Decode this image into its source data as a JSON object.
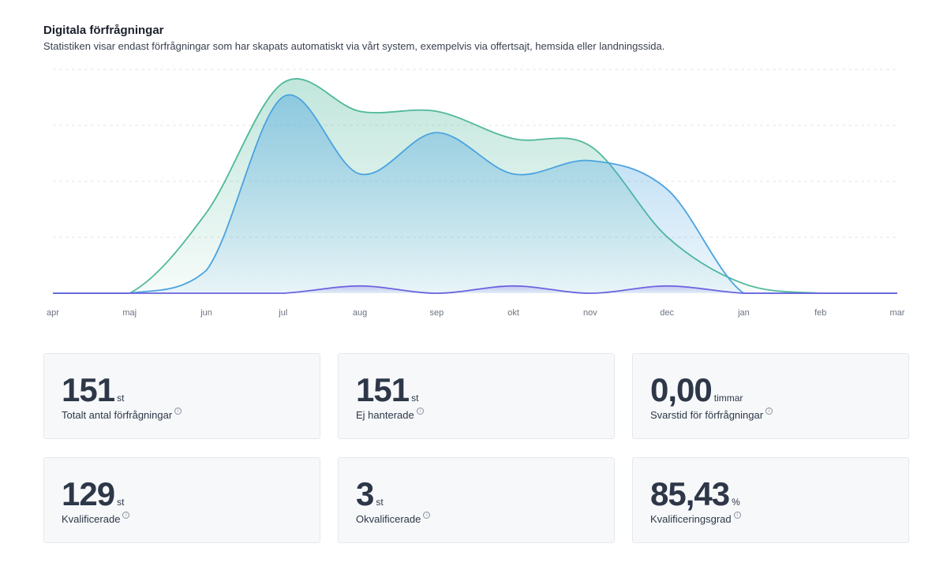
{
  "header": {
    "title": "Digitala förfrågningar",
    "subtitle": "Statistiken visar endast förfrågningar som har skapats automatiskt via vårt system, exempelvis via offertsajt, hemsida eller landningssida."
  },
  "chart_data": {
    "type": "area",
    "categories": [
      "apr",
      "maj",
      "jun",
      "jul",
      "aug",
      "sep",
      "okt",
      "nov",
      "dec",
      "jan",
      "feb",
      "mar"
    ],
    "ylim": [
      0,
      4
    ],
    "grid": true,
    "series": [
      {
        "color": "#4fb89a",
        "values": [
          0,
          0,
          1.44,
          3.76,
          3.25,
          3.25,
          2.76,
          2.63,
          1.01,
          0.17,
          0,
          0
        ]
      },
      {
        "color": "#4aa3e0",
        "values": [
          0,
          0,
          0.41,
          3.51,
          2.13,
          2.87,
          2.13,
          2.37,
          1.86,
          0,
          0,
          0
        ]
      },
      {
        "color": "#6b63e0",
        "values": [
          0,
          0,
          0,
          0,
          0.13,
          0,
          0.13,
          0,
          0.13,
          0,
          0,
          0
        ]
      }
    ]
  },
  "cards": [
    {
      "value": "151",
      "unit": "st",
      "label": "Totalt antal förfrågningar"
    },
    {
      "value": "151",
      "unit": "st",
      "label": "Ej hanterade"
    },
    {
      "value": "0,00",
      "unit": "timmar",
      "label": "Svarstid för förfrågningar"
    },
    {
      "value": "129",
      "unit": "st",
      "label": "Kvalificerade"
    },
    {
      "value": "3",
      "unit": "st",
      "label": "Okvalificerade"
    },
    {
      "value": "85,43",
      "unit": "%",
      "label": "Kvalificeringsgrad"
    }
  ],
  "info_icon": "info-circle-icon"
}
